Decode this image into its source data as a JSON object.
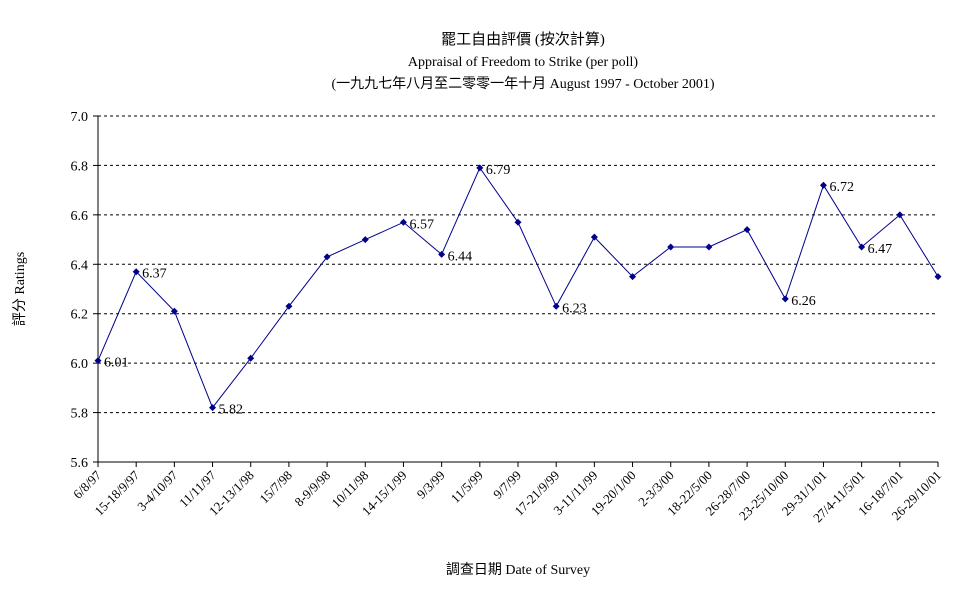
{
  "chart_data": {
    "type": "line",
    "title": "罷工自由評價 (按次計算)",
    "subtitle": "Appraisal of Freedom to Strike (per poll)",
    "subtitle2": "(一九九七年八月至二零零一年十月 August 1997 - October 2001)",
    "xlabel": "調查日期 Date of Survey",
    "ylabel": "評分 Ratings",
    "ylim": [
      5.6,
      7.0
    ],
    "yticks": [
      "5.6",
      "5.8",
      "6.0",
      "6.2",
      "6.4",
      "6.6",
      "6.8",
      "7.0"
    ],
    "grid": true,
    "x": [
      "6/8/97",
      "15-18/9/97",
      "3-4/10/97",
      "11/11/97",
      "12-13/1/98",
      "15/7/98",
      "8-9/9/98",
      "10/11/98",
      "14-15/1/99",
      "9/3/99",
      "11/5/99",
      "9/7/99",
      "17-21/9/99",
      "3-11/11/99",
      "19-20/1/00",
      "2-3/3/00",
      "18-22/5/00",
      "26-28/7/00",
      "23-25/10/00",
      "29-31/1/01",
      "27/4-11/5/01",
      "16-18/7/01",
      "26-29/10/01"
    ],
    "values": [
      6.01,
      6.37,
      6.21,
      5.82,
      6.02,
      6.23,
      6.43,
      6.5,
      6.57,
      6.44,
      6.79,
      6.57,
      6.23,
      6.51,
      6.35,
      6.47,
      6.47,
      6.54,
      6.26,
      6.72,
      6.47,
      6.6,
      6.35
    ],
    "data_labels": [
      {
        "index": 0,
        "text": "6.01"
      },
      {
        "index": 1,
        "text": "6.37"
      },
      {
        "index": 3,
        "text": "5.82"
      },
      {
        "index": 8,
        "text": "6.57"
      },
      {
        "index": 9,
        "text": "6.44"
      },
      {
        "index": 10,
        "text": "6.79"
      },
      {
        "index": 12,
        "text": "6.23"
      },
      {
        "index": 18,
        "text": "6.26"
      },
      {
        "index": 19,
        "text": "6.72"
      },
      {
        "index": 20,
        "text": "6.47"
      }
    ],
    "series_color": "#00008B"
  }
}
